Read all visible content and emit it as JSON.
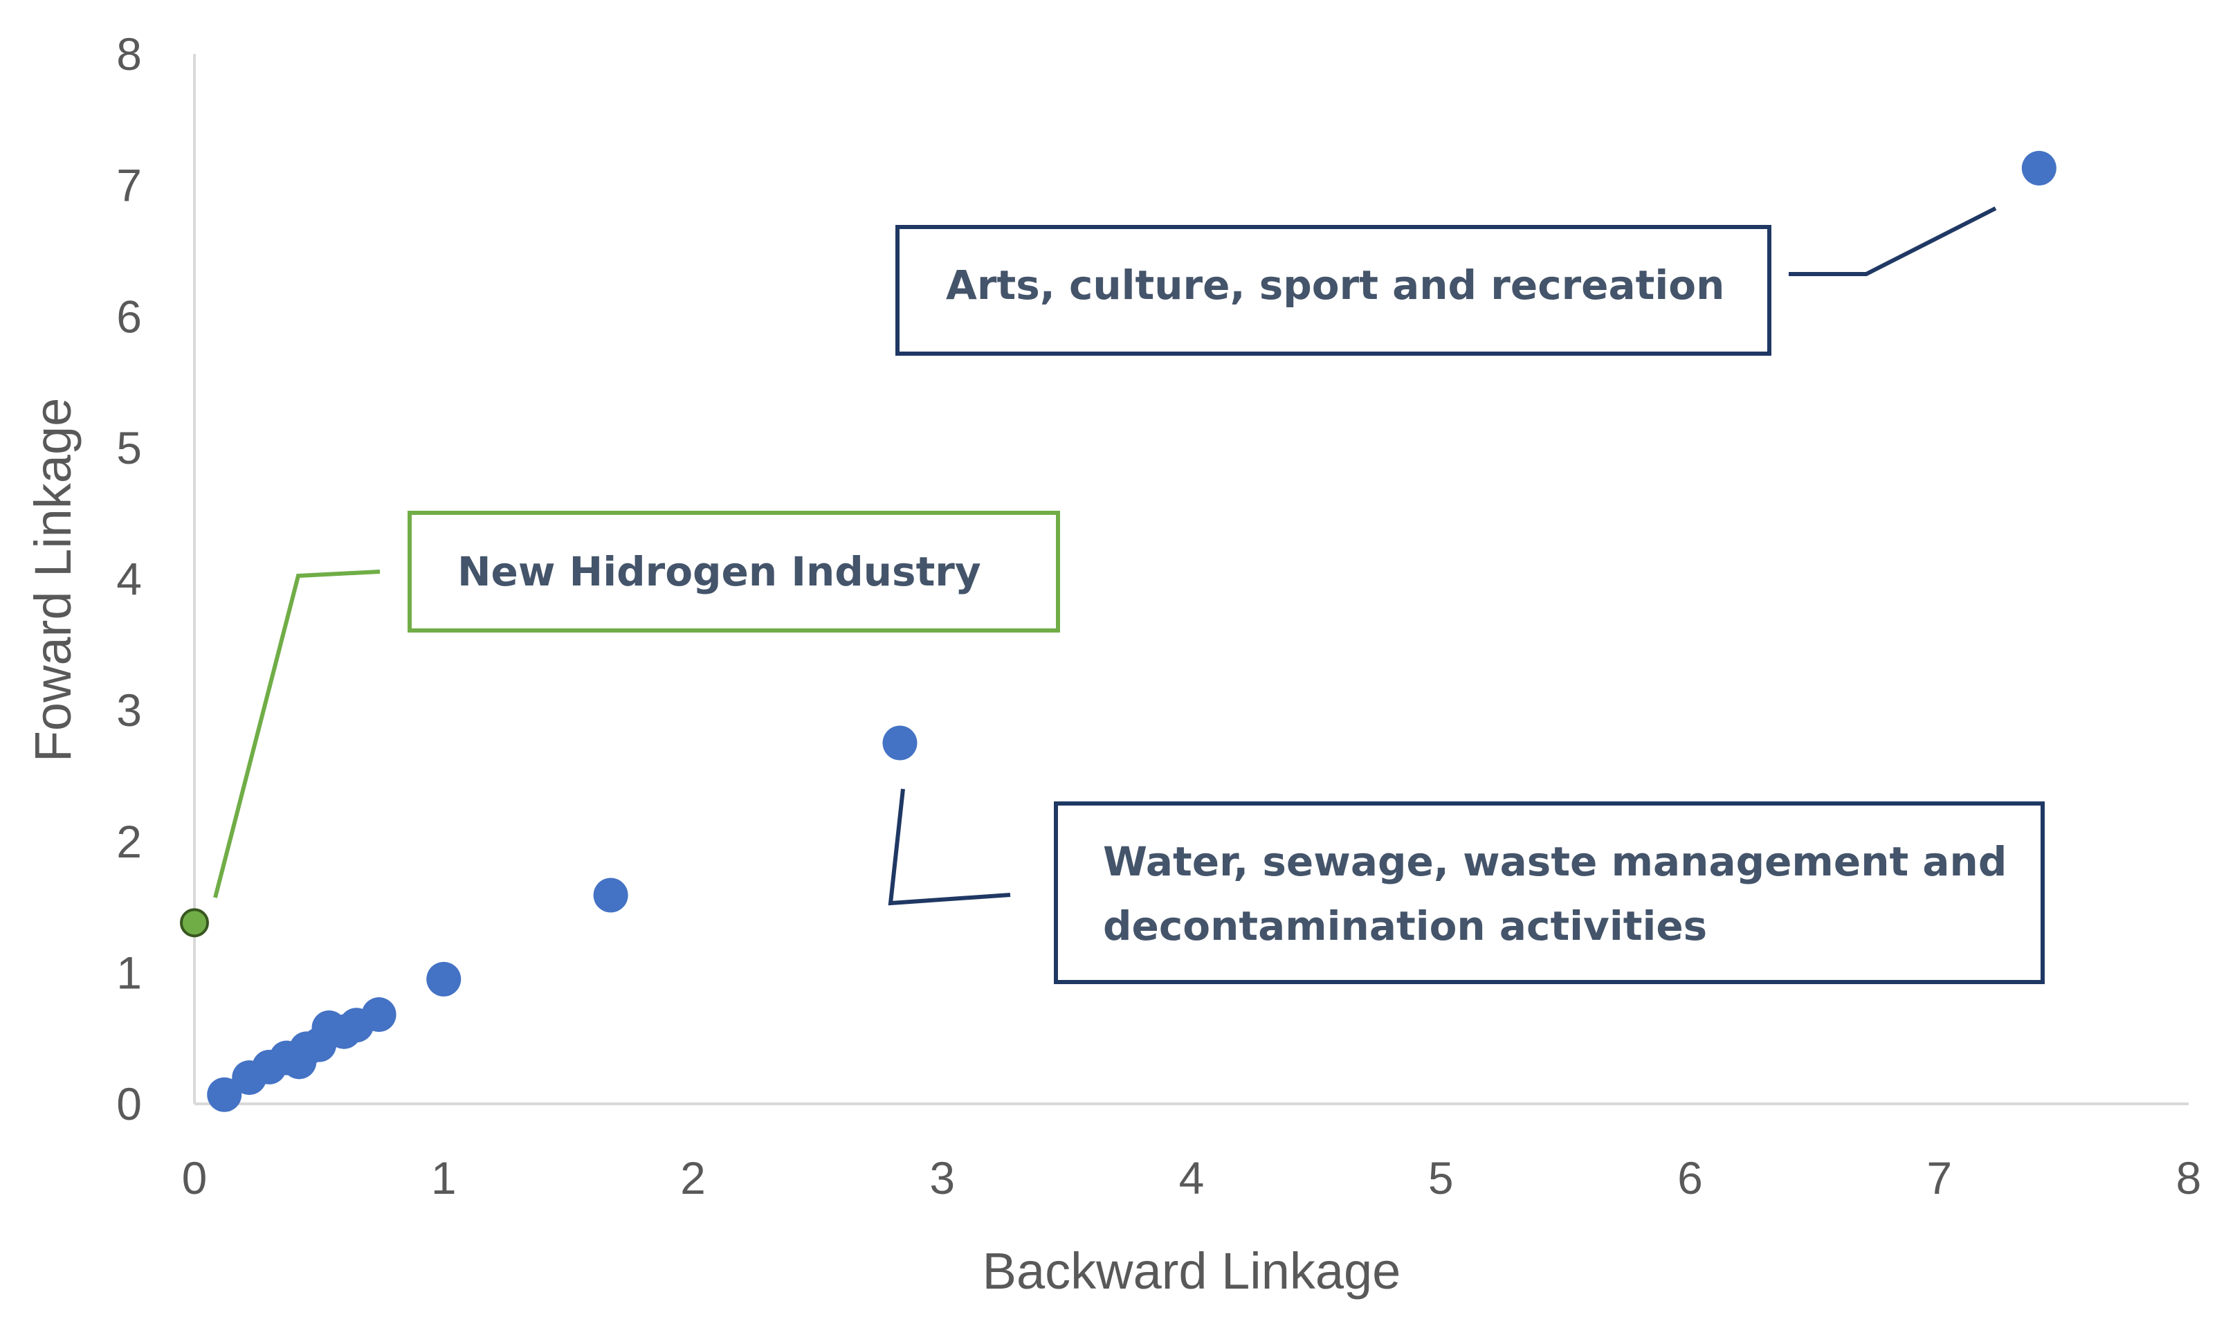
{
  "chart_data": {
    "type": "scatter",
    "xlabel": "Backward Linkage",
    "ylabel": "Foward Linkage",
    "xlim": [
      0,
      8
    ],
    "ylim": [
      0,
      8
    ],
    "x_ticks": [
      "0",
      "1",
      "2",
      "3",
      "4",
      "5",
      "6",
      "7",
      "8"
    ],
    "y_ticks": [
      "0",
      "1",
      "2",
      "3",
      "4",
      "5",
      "6",
      "7",
      "8"
    ],
    "grid": false,
    "legend": "none",
    "series": [
      {
        "color": "#4472c4",
        "points": [
          {
            "x": 0.12,
            "y": 0.07
          },
          {
            "x": 0.22,
            "y": 0.2
          },
          {
            "x": 0.3,
            "y": 0.28
          },
          {
            "x": 0.37,
            "y": 0.35
          },
          {
            "x": 0.42,
            "y": 0.32
          },
          {
            "x": 0.45,
            "y": 0.42
          },
          {
            "x": 0.5,
            "y": 0.45
          },
          {
            "x": 0.54,
            "y": 0.58
          },
          {
            "x": 0.6,
            "y": 0.55
          },
          {
            "x": 0.65,
            "y": 0.6
          },
          {
            "x": 0.74,
            "y": 0.68
          },
          {
            "x": 1.0,
            "y": 0.95
          },
          {
            "x": 1.67,
            "y": 1.59
          },
          {
            "x": 2.83,
            "y": 2.75
          },
          {
            "x": 7.4,
            "y": 7.13
          }
        ]
      },
      {
        "color": "#70ad47",
        "points": [
          {
            "x": 0.0,
            "y": 1.38
          }
        ]
      }
    ],
    "annotations": [
      {
        "lines": [
          "Arts, culture, sport and recreation"
        ],
        "border_color": "#1f3864",
        "target": {
          "x": 7.4,
          "y": 7.13
        }
      },
      {
        "lines": [
          "New Hidrogen Industry"
        ],
        "border_color": "#70ad47",
        "target": {
          "x": 0.0,
          "y": 1.38
        }
      },
      {
        "lines": [
          "Water, sewage, waste management and",
          "decontamination activities"
        ],
        "border_color": "#1f3864",
        "target": {
          "x": 2.83,
          "y": 2.75
        }
      }
    ]
  }
}
